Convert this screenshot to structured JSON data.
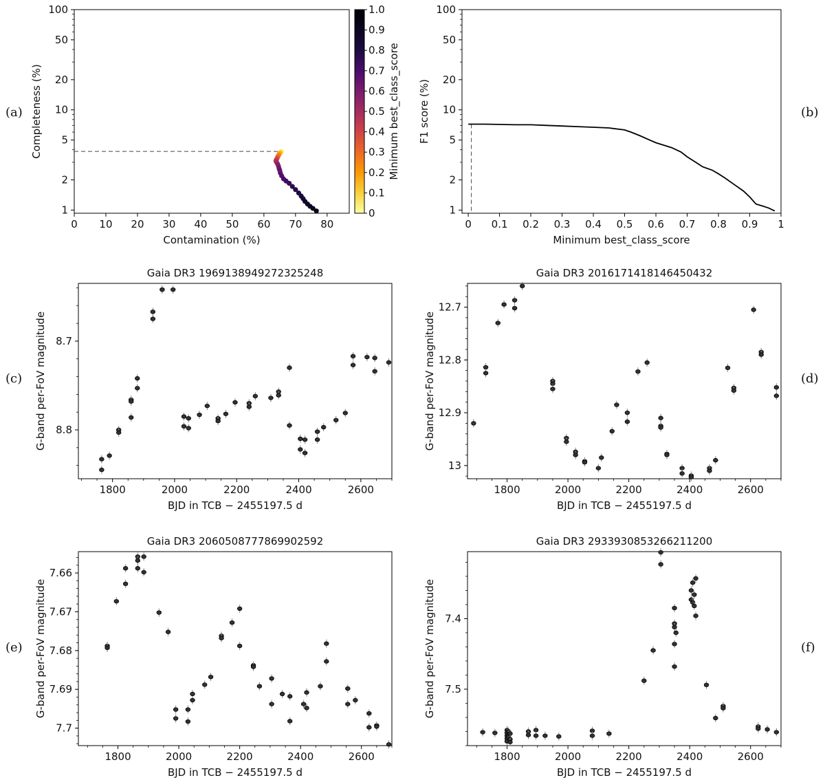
{
  "panel_letters": [
    "(a)",
    "(b)",
    "(c)",
    "(d)",
    "(e)",
    "(f)"
  ],
  "chart_data": [
    {
      "panel": "(a)",
      "type": "scatter",
      "xlabel": "Contamination (%)",
      "ylabel": "Completeness (%)",
      "xlim": [
        0,
        87
      ],
      "ylim": [
        0.93,
        100
      ],
      "yscale": "log",
      "xticks": [
        0,
        10,
        20,
        30,
        40,
        50,
        60,
        70,
        80
      ],
      "yticks": [
        1,
        2,
        5,
        10,
        20,
        50,
        100
      ],
      "colorbar": {
        "label": "Minimum best_class_score",
        "range": [
          0,
          1
        ],
        "ticks": [
          0,
          0.1,
          0.2,
          0.3,
          0.4,
          0.5,
          0.6,
          0.7,
          0.8,
          0.9,
          1.0
        ],
        "colormap": "inferno_r"
      },
      "dashed_guide": {
        "x": 65.6,
        "y": 3.85
      },
      "points": [
        {
          "x": 65.6,
          "y": 3.85,
          "c": 0.02
        },
        {
          "x": 65.4,
          "y": 3.8,
          "c": 0.05
        },
        {
          "x": 65.2,
          "y": 3.75,
          "c": 0.1
        },
        {
          "x": 65.0,
          "y": 3.7,
          "c": 0.15
        },
        {
          "x": 64.8,
          "y": 3.6,
          "c": 0.2
        },
        {
          "x": 64.6,
          "y": 3.5,
          "c": 0.25
        },
        {
          "x": 64.4,
          "y": 3.4,
          "c": 0.3
        },
        {
          "x": 64.2,
          "y": 3.3,
          "c": 0.35
        },
        {
          "x": 64.0,
          "y": 3.2,
          "c": 0.4
        },
        {
          "x": 63.8,
          "y": 3.1,
          "c": 0.45
        },
        {
          "x": 64.0,
          "y": 3.0,
          "c": 0.5
        },
        {
          "x": 64.3,
          "y": 2.9,
          "c": 0.55
        },
        {
          "x": 64.6,
          "y": 2.75,
          "c": 0.6
        },
        {
          "x": 64.8,
          "y": 2.6,
          "c": 0.62
        },
        {
          "x": 65.0,
          "y": 2.5,
          "c": 0.64
        },
        {
          "x": 65.2,
          "y": 2.35,
          "c": 0.66
        },
        {
          "x": 65.6,
          "y": 2.2,
          "c": 0.68
        },
        {
          "x": 66.2,
          "y": 2.05,
          "c": 0.7
        },
        {
          "x": 67.0,
          "y": 1.95,
          "c": 0.72
        },
        {
          "x": 68.0,
          "y": 1.85,
          "c": 0.74
        },
        {
          "x": 69.0,
          "y": 1.72,
          "c": 0.76
        },
        {
          "x": 70.0,
          "y": 1.6,
          "c": 0.78
        },
        {
          "x": 71.0,
          "y": 1.48,
          "c": 0.8
        },
        {
          "x": 71.8,
          "y": 1.38,
          "c": 0.82
        },
        {
          "x": 72.4,
          "y": 1.3,
          "c": 0.84
        },
        {
          "x": 73.0,
          "y": 1.22,
          "c": 0.86
        },
        {
          "x": 73.8,
          "y": 1.15,
          "c": 0.88
        },
        {
          "x": 74.6,
          "y": 1.09,
          "c": 0.9
        },
        {
          "x": 75.5,
          "y": 1.04,
          "c": 0.92
        },
        {
          "x": 76.6,
          "y": 0.98,
          "c": 0.94
        }
      ]
    },
    {
      "panel": "(b)",
      "type": "line",
      "xlabel": "Minimum best_class_score",
      "ylabel": "F1 score (%)",
      "xlim": [
        -0.02,
        1.0
      ],
      "ylim": [
        0.93,
        100
      ],
      "yscale": "log",
      "xticks": [
        0,
        0.1,
        0.2,
        0.3,
        0.4,
        0.5,
        0.6,
        0.7,
        0.8,
        0.9,
        1.0
      ],
      "yticks": [
        1,
        2,
        5,
        10,
        20,
        50,
        100
      ],
      "dashed_guide": {
        "x": 0.01,
        "y": 7.2
      },
      "x": [
        0.0,
        0.05,
        0.1,
        0.15,
        0.2,
        0.25,
        0.3,
        0.35,
        0.4,
        0.45,
        0.5,
        0.52,
        0.55,
        0.58,
        0.6,
        0.65,
        0.68,
        0.7,
        0.72,
        0.75,
        0.78,
        0.8,
        0.82,
        0.85,
        0.88,
        0.9,
        0.92,
        0.94,
        0.96,
        0.98
      ],
      "y": [
        7.2,
        7.2,
        7.15,
        7.1,
        7.1,
        7.0,
        6.9,
        6.8,
        6.7,
        6.6,
        6.3,
        6.0,
        5.5,
        5.0,
        4.7,
        4.2,
        3.8,
        3.4,
        3.1,
        2.7,
        2.5,
        2.3,
        2.1,
        1.8,
        1.55,
        1.35,
        1.15,
        1.1,
        1.05,
        0.98
      ]
    },
    {
      "panel": "(c)",
      "type": "scatter",
      "title": "Gaia DR3 1969138949272325248",
      "xlabel": "BJD in TCB − 2455197.5 d",
      "ylabel": "G-band per-FoV magnitude",
      "xlim": [
        1690,
        2700
      ],
      "ylim": [
        8.855,
        8.635
      ],
      "y_inverted": true,
      "xticks": [
        1800,
        2000,
        2200,
        2400,
        2600
      ],
      "yticks": [
        8.7,
        8.8
      ],
      "points": [
        {
          "x": 1765,
          "y": 8.833
        },
        {
          "x": 1765,
          "y": 8.845
        },
        {
          "x": 1790,
          "y": 8.829
        },
        {
          "x": 1820,
          "y": 8.8
        },
        {
          "x": 1820,
          "y": 8.803
        },
        {
          "x": 1860,
          "y": 8.766
        },
        {
          "x": 1860,
          "y": 8.768
        },
        {
          "x": 1860,
          "y": 8.786
        },
        {
          "x": 1880,
          "y": 8.753
        },
        {
          "x": 1880,
          "y": 8.742
        },
        {
          "x": 1930,
          "y": 8.667
        },
        {
          "x": 1930,
          "y": 8.675
        },
        {
          "x": 1960,
          "y": 8.642
        },
        {
          "x": 1960,
          "y": 8.642
        },
        {
          "x": 1995,
          "y": 8.642
        },
        {
          "x": 2030,
          "y": 8.785
        },
        {
          "x": 2030,
          "y": 8.796
        },
        {
          "x": 2045,
          "y": 8.787
        },
        {
          "x": 2045,
          "y": 8.798
        },
        {
          "x": 2080,
          "y": 8.783
        },
        {
          "x": 2105,
          "y": 8.773
        },
        {
          "x": 2140,
          "y": 8.787
        },
        {
          "x": 2140,
          "y": 8.79
        },
        {
          "x": 2165,
          "y": 8.782
        },
        {
          "x": 2195,
          "y": 8.769
        },
        {
          "x": 2240,
          "y": 8.77
        },
        {
          "x": 2240,
          "y": 8.774
        },
        {
          "x": 2260,
          "y": 8.762
        },
        {
          "x": 2310,
          "y": 8.764
        },
        {
          "x": 2335,
          "y": 8.757
        },
        {
          "x": 2335,
          "y": 8.761
        },
        {
          "x": 2370,
          "y": 8.73
        },
        {
          "x": 2370,
          "y": 8.795
        },
        {
          "x": 2405,
          "y": 8.81
        },
        {
          "x": 2405,
          "y": 8.822
        },
        {
          "x": 2420,
          "y": 8.811
        },
        {
          "x": 2420,
          "y": 8.826
        },
        {
          "x": 2460,
          "y": 8.802
        },
        {
          "x": 2460,
          "y": 8.811
        },
        {
          "x": 2480,
          "y": 8.797
        },
        {
          "x": 2520,
          "y": 8.789
        },
        {
          "x": 2550,
          "y": 8.781
        },
        {
          "x": 2575,
          "y": 8.717
        },
        {
          "x": 2575,
          "y": 8.727
        },
        {
          "x": 2620,
          "y": 8.718
        },
        {
          "x": 2645,
          "y": 8.719
        },
        {
          "x": 2645,
          "y": 8.734
        },
        {
          "x": 2690,
          "y": 8.724
        }
      ]
    },
    {
      "panel": "(d)",
      "type": "scatter",
      "title": "Gaia DR3 2016171418146450432",
      "xlabel": "BJD in TCB − 2455197.5 d",
      "ylabel": "G-band per-FoV magnitude",
      "xlim": [
        1670,
        2700
      ],
      "ylim": [
        13.025,
        12.655
      ],
      "y_inverted": true,
      "xticks": [
        1800,
        2000,
        2200,
        2400,
        2600
      ],
      "yticks": [
        12.7,
        12.8,
        12.9,
        13.0
      ],
      "points": [
        {
          "x": 1690,
          "y": 12.92
        },
        {
          "x": 1730,
          "y": 12.814
        },
        {
          "x": 1730,
          "y": 12.825
        },
        {
          "x": 1770,
          "y": 12.73
        },
        {
          "x": 1790,
          "y": 12.695
        },
        {
          "x": 1825,
          "y": 12.687
        },
        {
          "x": 1825,
          "y": 12.702
        },
        {
          "x": 1850,
          "y": 12.66
        },
        {
          "x": 1950,
          "y": 12.84
        },
        {
          "x": 1950,
          "y": 12.845
        },
        {
          "x": 1950,
          "y": 12.855
        },
        {
          "x": 1995,
          "y": 12.948
        },
        {
          "x": 1995,
          "y": 12.955
        },
        {
          "x": 2025,
          "y": 12.974
        },
        {
          "x": 2025,
          "y": 12.98
        },
        {
          "x": 2055,
          "y": 12.992
        },
        {
          "x": 2055,
          "y": 12.994
        },
        {
          "x": 2100,
          "y": 13.005
        },
        {
          "x": 2110,
          "y": 12.985
        },
        {
          "x": 2145,
          "y": 12.935
        },
        {
          "x": 2160,
          "y": 12.885
        },
        {
          "x": 2195,
          "y": 12.9
        },
        {
          "x": 2195,
          "y": 12.917
        },
        {
          "x": 2230,
          "y": 12.822
        },
        {
          "x": 2260,
          "y": 12.805
        },
        {
          "x": 2305,
          "y": 12.91
        },
        {
          "x": 2305,
          "y": 12.925
        },
        {
          "x": 2305,
          "y": 12.928
        },
        {
          "x": 2325,
          "y": 12.978
        },
        {
          "x": 2325,
          "y": 12.98
        },
        {
          "x": 2375,
          "y": 13.005
        },
        {
          "x": 2375,
          "y": 13.015
        },
        {
          "x": 2405,
          "y": 13.019
        },
        {
          "x": 2405,
          "y": 13.022
        },
        {
          "x": 2465,
          "y": 13.005
        },
        {
          "x": 2465,
          "y": 13.01
        },
        {
          "x": 2485,
          "y": 12.99
        },
        {
          "x": 2525,
          "y": 12.815
        },
        {
          "x": 2545,
          "y": 12.853
        },
        {
          "x": 2545,
          "y": 12.858
        },
        {
          "x": 2610,
          "y": 12.705
        },
        {
          "x": 2635,
          "y": 12.785
        },
        {
          "x": 2635,
          "y": 12.79
        },
        {
          "x": 2685,
          "y": 12.852
        },
        {
          "x": 2685,
          "y": 12.868
        }
      ]
    },
    {
      "panel": "(e)",
      "type": "scatter",
      "title": "Gaia DR3 2060508777869902592",
      "xlabel": "BJD in TCB − 2455197.5 d",
      "ylabel": "G-band per-FoV magnitude",
      "xlim": [
        1670,
        2700
      ],
      "ylim": [
        7.7045,
        7.6545
      ],
      "y_inverted": true,
      "xticks": [
        1800,
        2000,
        2200,
        2400,
        2600
      ],
      "yticks": [
        7.66,
        7.67,
        7.68,
        7.69,
        7.7
      ],
      "points": [
        {
          "x": 1765,
          "y": 7.6788
        },
        {
          "x": 1765,
          "y": 7.6793
        },
        {
          "x": 1795,
          "y": 7.6673
        },
        {
          "x": 1825,
          "y": 7.6588
        },
        {
          "x": 1825,
          "y": 7.6628
        },
        {
          "x": 1865,
          "y": 7.6558
        },
        {
          "x": 1865,
          "y": 7.6568
        },
        {
          "x": 1865,
          "y": 7.6588
        },
        {
          "x": 1885,
          "y": 7.6558
        },
        {
          "x": 1885,
          "y": 7.6598
        },
        {
          "x": 1935,
          "y": 7.6702
        },
        {
          "x": 1965,
          "y": 7.6752
        },
        {
          "x": 1990,
          "y": 7.6952
        },
        {
          "x": 1990,
          "y": 7.6975
        },
        {
          "x": 2030,
          "y": 7.6952
        },
        {
          "x": 2030,
          "y": 7.6983
        },
        {
          "x": 2045,
          "y": 7.6912
        },
        {
          "x": 2045,
          "y": 7.6928
        },
        {
          "x": 2085,
          "y": 7.6888
        },
        {
          "x": 2105,
          "y": 7.6868
        },
        {
          "x": 2140,
          "y": 7.6762
        },
        {
          "x": 2140,
          "y": 7.6768
        },
        {
          "x": 2175,
          "y": 7.6728
        },
        {
          "x": 2200,
          "y": 7.6692
        },
        {
          "x": 2200,
          "y": 7.6788
        },
        {
          "x": 2245,
          "y": 7.6838
        },
        {
          "x": 2245,
          "y": 7.6842
        },
        {
          "x": 2265,
          "y": 7.6892
        },
        {
          "x": 2305,
          "y": 7.6872
        },
        {
          "x": 2305,
          "y": 7.6938
        },
        {
          "x": 2340,
          "y": 7.6912
        },
        {
          "x": 2365,
          "y": 7.6918
        },
        {
          "x": 2365,
          "y": 7.6982
        },
        {
          "x": 2410,
          "y": 7.6938
        },
        {
          "x": 2420,
          "y": 7.6908
        },
        {
          "x": 2420,
          "y": 7.6948
        },
        {
          "x": 2465,
          "y": 7.6892
        },
        {
          "x": 2485,
          "y": 7.6782
        },
        {
          "x": 2485,
          "y": 7.6828
        },
        {
          "x": 2555,
          "y": 7.6898
        },
        {
          "x": 2555,
          "y": 7.6938
        },
        {
          "x": 2580,
          "y": 7.6928
        },
        {
          "x": 2625,
          "y": 7.6962
        },
        {
          "x": 2625,
          "y": 7.6998
        },
        {
          "x": 2650,
          "y": 7.6993
        },
        {
          "x": 2650,
          "y": 7.6996
        },
        {
          "x": 2690,
          "y": 7.7042
        }
      ]
    },
    {
      "panel": "(f)",
      "type": "scatter",
      "title": "Gaia DR3 2933930853266211200",
      "xlabel": "BJD in TCB − 2455197.5 d",
      "ylabel": "G-band per-FoV magnitude",
      "xlim": [
        1670,
        2700
      ],
      "ylim": [
        7.58,
        7.305
      ],
      "y_inverted": true,
      "xticks": [
        1800,
        2000,
        2200,
        2400,
        2600
      ],
      "yticks": [
        7.4,
        7.5
      ],
      "points": [
        {
          "x": 1720,
          "y": 7.561
        },
        {
          "x": 1760,
          "y": 7.562
        },
        {
          "x": 1800,
          "y": 7.558
        },
        {
          "x": 1800,
          "y": 7.562
        },
        {
          "x": 1800,
          "y": 7.566
        },
        {
          "x": 1800,
          "y": 7.57
        },
        {
          "x": 1800,
          "y": 7.574
        },
        {
          "x": 1805,
          "y": 7.56
        },
        {
          "x": 1805,
          "y": 7.565
        },
        {
          "x": 1805,
          "y": 7.568
        },
        {
          "x": 1810,
          "y": 7.563
        },
        {
          "x": 1810,
          "y": 7.571
        },
        {
          "x": 1810,
          "y": 7.575
        },
        {
          "x": 1870,
          "y": 7.56
        },
        {
          "x": 1870,
          "y": 7.565
        },
        {
          "x": 1895,
          "y": 7.558
        },
        {
          "x": 1895,
          "y": 7.566
        },
        {
          "x": 1925,
          "y": 7.566
        },
        {
          "x": 1970,
          "y": 7.567
        },
        {
          "x": 2080,
          "y": 7.559
        },
        {
          "x": 2080,
          "y": 7.566
        },
        {
          "x": 2135,
          "y": 7.563
        },
        {
          "x": 2250,
          "y": 7.488
        },
        {
          "x": 2280,
          "y": 7.445
        },
        {
          "x": 2305,
          "y": 7.306
        },
        {
          "x": 2305,
          "y": 7.323
        },
        {
          "x": 2350,
          "y": 7.385
        },
        {
          "x": 2350,
          "y": 7.407
        },
        {
          "x": 2350,
          "y": 7.412
        },
        {
          "x": 2350,
          "y": 7.436
        },
        {
          "x": 2350,
          "y": 7.468
        },
        {
          "x": 2355,
          "y": 7.42
        },
        {
          "x": 2405,
          "y": 7.36
        },
        {
          "x": 2405,
          "y": 7.373
        },
        {
          "x": 2410,
          "y": 7.349
        },
        {
          "x": 2410,
          "y": 7.377
        },
        {
          "x": 2415,
          "y": 7.366
        },
        {
          "x": 2415,
          "y": 7.382
        },
        {
          "x": 2420,
          "y": 7.343
        },
        {
          "x": 2420,
          "y": 7.396
        },
        {
          "x": 2455,
          "y": 7.494
        },
        {
          "x": 2485,
          "y": 7.541
        },
        {
          "x": 2510,
          "y": 7.524
        },
        {
          "x": 2510,
          "y": 7.527
        },
        {
          "x": 2625,
          "y": 7.553
        },
        {
          "x": 2625,
          "y": 7.556
        },
        {
          "x": 2655,
          "y": 7.557
        },
        {
          "x": 2685,
          "y": 7.561
        }
      ]
    }
  ]
}
